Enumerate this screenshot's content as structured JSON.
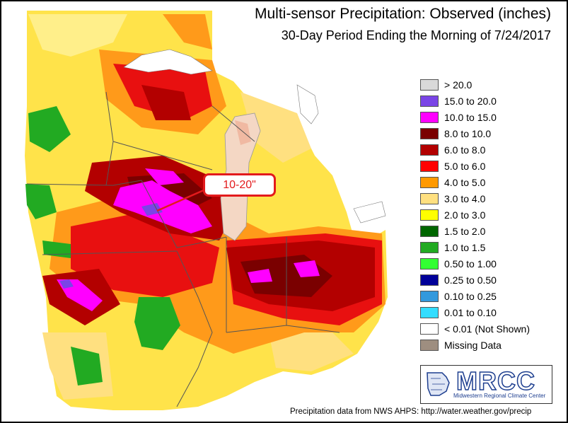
{
  "title": "Multi-sensor Precipitation: Observed (inches)",
  "subtitle": "30-Day Period Ending the Morning of 7/24/2017",
  "callout": "10-20\"",
  "legend": [
    {
      "label": "> 20.0",
      "color": "#d9d9d9"
    },
    {
      "label": "15.0 to 20.0",
      "color": "#7a45e6"
    },
    {
      "label": "10.0 to 15.0",
      "color": "#ff00ff"
    },
    {
      "label": "8.0 to 10.0",
      "color": "#7a0000"
    },
    {
      "label": "6.0 to 8.0",
      "color": "#b30000"
    },
    {
      "label": "5.0 to 6.0",
      "color": "#ff0000"
    },
    {
      "label": "4.0 to 5.0",
      "color": "#ff9900"
    },
    {
      "label": "3.0 to 4.0",
      "color": "#ffe080"
    },
    {
      "label": "2.0 to 3.0",
      "color": "#ffff00"
    },
    {
      "label": "1.5 to 2.0",
      "color": "#006600"
    },
    {
      "label": "1.0 to 1.5",
      "color": "#22aa22"
    },
    {
      "label": "0.50 to 1.00",
      "color": "#33ff33"
    },
    {
      "label": "0.25 to 0.50",
      "color": "#000099"
    },
    {
      "label": "0.10 to 0.25",
      "color": "#3399dd"
    },
    {
      "label": "0.01 to 0.10",
      "color": "#33ddff"
    },
    {
      "label": "< 0.01 (Not Shown)",
      "color": "#ffffff"
    },
    {
      "label": "Missing Data",
      "color": "#9e8e80"
    }
  ],
  "logo": {
    "name": "MRCC",
    "full_name": "Midwestern Regional Climate Center"
  },
  "source": "Precipitation data from NWS AHPS: http://water.weather.gov/precip",
  "colors": {
    "lake": "#f4d7c4",
    "callout": "#e31a1c",
    "brand": "#1d3e8f"
  }
}
